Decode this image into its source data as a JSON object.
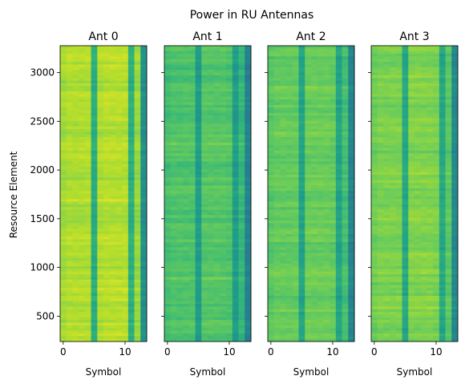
{
  "chart_data": {
    "type": "heatmap",
    "title": "Power in RU Antennas",
    "ylabel": "Resource Element",
    "y_ticks": [
      500,
      1000,
      1500,
      2000,
      2500,
      3000
    ],
    "ylim": [
      240,
      3276
    ],
    "x_ticks": [
      0,
      10
    ],
    "xlim": [
      -0.5,
      13.5
    ],
    "grid": false,
    "colormap": "viridis",
    "panels": [
      {
        "title": "Ant 0",
        "xlabel": "Symbol",
        "show_y_ticklabels": true,
        "symbol_levels": [
          0.86,
          0.88,
          0.88,
          0.88,
          0.88,
          0.62,
          0.88,
          0.89,
          0.89,
          0.89,
          0.89,
          0.63,
          0.84,
          0.5
        ],
        "row_variation": 0.05
      },
      {
        "title": "Ant 1",
        "xlabel": "Symbol",
        "show_y_ticklabels": false,
        "symbol_levels": [
          0.7,
          0.72,
          0.72,
          0.72,
          0.72,
          0.55,
          0.73,
          0.73,
          0.73,
          0.73,
          0.72,
          0.55,
          0.66,
          0.44
        ],
        "row_variation": 0.06
      },
      {
        "title": "Ant 2",
        "xlabel": "Symbol",
        "show_y_ticklabels": false,
        "symbol_levels": [
          0.74,
          0.76,
          0.76,
          0.76,
          0.76,
          0.58,
          0.77,
          0.77,
          0.77,
          0.77,
          0.76,
          0.58,
          0.7,
          0.46
        ],
        "row_variation": 0.05
      },
      {
        "title": "Ant 3",
        "xlabel": "Symbol",
        "show_y_ticklabels": false,
        "symbol_levels": [
          0.78,
          0.8,
          0.8,
          0.8,
          0.8,
          0.6,
          0.81,
          0.81,
          0.81,
          0.81,
          0.8,
          0.6,
          0.74,
          0.48
        ],
        "row_variation": 0.05
      }
    ]
  }
}
